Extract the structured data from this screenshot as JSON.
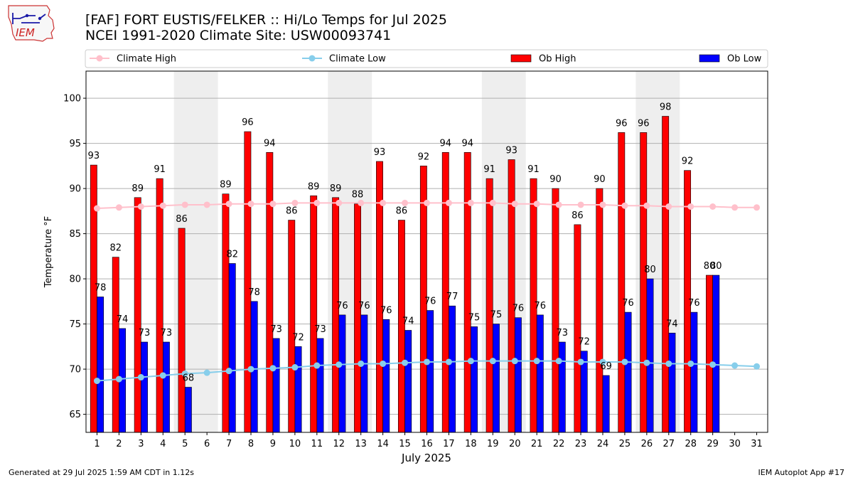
{
  "header": {
    "title_line1": "[FAF] FORT EUSTIS/FELKER :: Hi/Lo Temps for Jul 2025",
    "title_line2": "NCEI 1991-2020 Climate Site: USW00093741",
    "logo_text": "IEM"
  },
  "footer": {
    "left": "Generated at 29 Jul 2025 1:59 AM CDT in 1.12s",
    "right": "IEM Autoplot App #17"
  },
  "colors": {
    "climate_high": "#ffc0cb",
    "climate_low": "#87ceeb",
    "ob_high": "#ff0000",
    "ob_low": "#0000ff",
    "weekend_shade": "#eeeeee",
    "grid": "#b0b0b0"
  },
  "chart_data": {
    "type": "bar",
    "xlabel": "July 2025",
    "ylabel": "Temperature °F",
    "ylim": [
      63,
      103
    ],
    "xlim": [
      0.5,
      31.5
    ],
    "yticks": [
      65,
      70,
      75,
      80,
      85,
      90,
      95,
      100
    ],
    "grid": "horizontal",
    "legend_position": "top",
    "days": [
      1,
      2,
      3,
      4,
      5,
      6,
      7,
      8,
      9,
      10,
      11,
      12,
      13,
      14,
      15,
      16,
      17,
      18,
      19,
      20,
      21,
      22,
      23,
      24,
      25,
      26,
      27,
      28,
      29,
      30,
      31
    ],
    "shaded_days": [
      [
        5,
        6
      ],
      [
        12,
        13
      ],
      [
        19,
        20
      ],
      [
        26,
        27
      ]
    ],
    "series": [
      {
        "name": "Climate High",
        "kind": "line",
        "values": [
          87.8,
          87.9,
          88.0,
          88.1,
          88.2,
          88.2,
          88.3,
          88.3,
          88.3,
          88.4,
          88.4,
          88.4,
          88.4,
          88.4,
          88.4,
          88.4,
          88.4,
          88.4,
          88.4,
          88.3,
          88.3,
          88.2,
          88.2,
          88.2,
          88.1,
          88.1,
          88.0,
          88.0,
          88.0,
          87.9,
          87.9
        ]
      },
      {
        "name": "Climate Low",
        "kind": "line",
        "values": [
          68.7,
          68.9,
          69.1,
          69.3,
          69.5,
          69.6,
          69.8,
          70.0,
          70.1,
          70.2,
          70.4,
          70.5,
          70.6,
          70.6,
          70.7,
          70.8,
          70.8,
          70.9,
          70.9,
          70.9,
          70.9,
          70.9,
          70.8,
          70.8,
          70.8,
          70.7,
          70.6,
          70.6,
          70.5,
          70.4,
          70.3
        ]
      },
      {
        "name": "Ob High",
        "kind": "bar",
        "values": [
          92.6,
          82.4,
          89.0,
          91.1,
          85.6,
          null,
          89.4,
          96.3,
          94.0,
          86.5,
          89.2,
          89.0,
          88.3,
          93.0,
          86.5,
          92.5,
          94.0,
          94.0,
          91.1,
          93.2,
          91.1,
          90.0,
          86.0,
          90.0,
          96.2,
          96.2,
          98.0,
          92.0,
          80.4,
          null,
          null
        ],
        "labels": [
          "93",
          "82",
          "89",
          "91",
          "86",
          "",
          "89",
          "96",
          "94",
          "86",
          "89",
          "89",
          "88",
          "93",
          "86",
          "92",
          "94",
          "94",
          "91",
          "93",
          "91",
          "90",
          "86",
          "90",
          "96",
          "96",
          "98",
          "92",
          "80",
          "",
          ""
        ]
      },
      {
        "name": "Ob Low",
        "kind": "bar",
        "values": [
          78.0,
          74.5,
          73.0,
          73.0,
          68.0,
          null,
          81.7,
          77.5,
          73.4,
          72.5,
          73.4,
          76.0,
          76.0,
          75.5,
          74.3,
          76.5,
          77.0,
          74.7,
          75.0,
          75.7,
          76.0,
          73.0,
          72.0,
          69.3,
          76.3,
          80.0,
          74.0,
          76.3,
          80.4,
          null,
          null
        ],
        "labels": [
          "78",
          "74",
          "73",
          "73",
          "68",
          "",
          "82",
          "78",
          "73",
          "72",
          "73",
          "76",
          "76",
          "76",
          "74",
          "76",
          "77",
          "75",
          "75",
          "76",
          "76",
          "73",
          "72",
          "69",
          "76",
          "80",
          "74",
          "76",
          "80",
          "",
          ""
        ]
      }
    ]
  }
}
